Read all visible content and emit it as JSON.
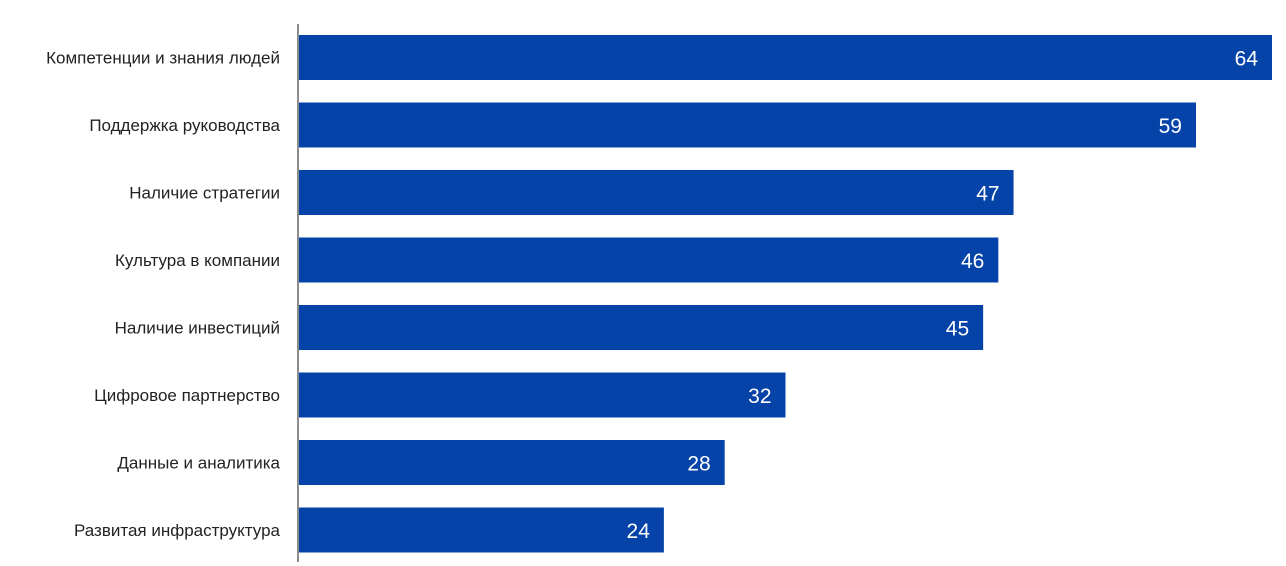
{
  "chart_data": {
    "type": "bar",
    "orientation": "horizontal",
    "categories": [
      "Компетенции и знания людей",
      "Поддержка руководства",
      "Наличие стратегии",
      "Культура в компании",
      "Наличие инвестиций",
      "Цифровое партнерство",
      "Данные и аналитика",
      "Развитая инфраструктура"
    ],
    "values": [
      64,
      59,
      47,
      46,
      45,
      32,
      28,
      24
    ],
    "value_labels": [
      "64",
      "59",
      "47",
      "46",
      "45",
      "32",
      "28",
      "24"
    ],
    "title": "",
    "xlabel": "",
    "ylabel": "",
    "xlim": [
      0,
      64
    ],
    "grid": false,
    "legend": "none",
    "bar_color": "#0543A8",
    "axis_color": "#8c8c8c"
  }
}
